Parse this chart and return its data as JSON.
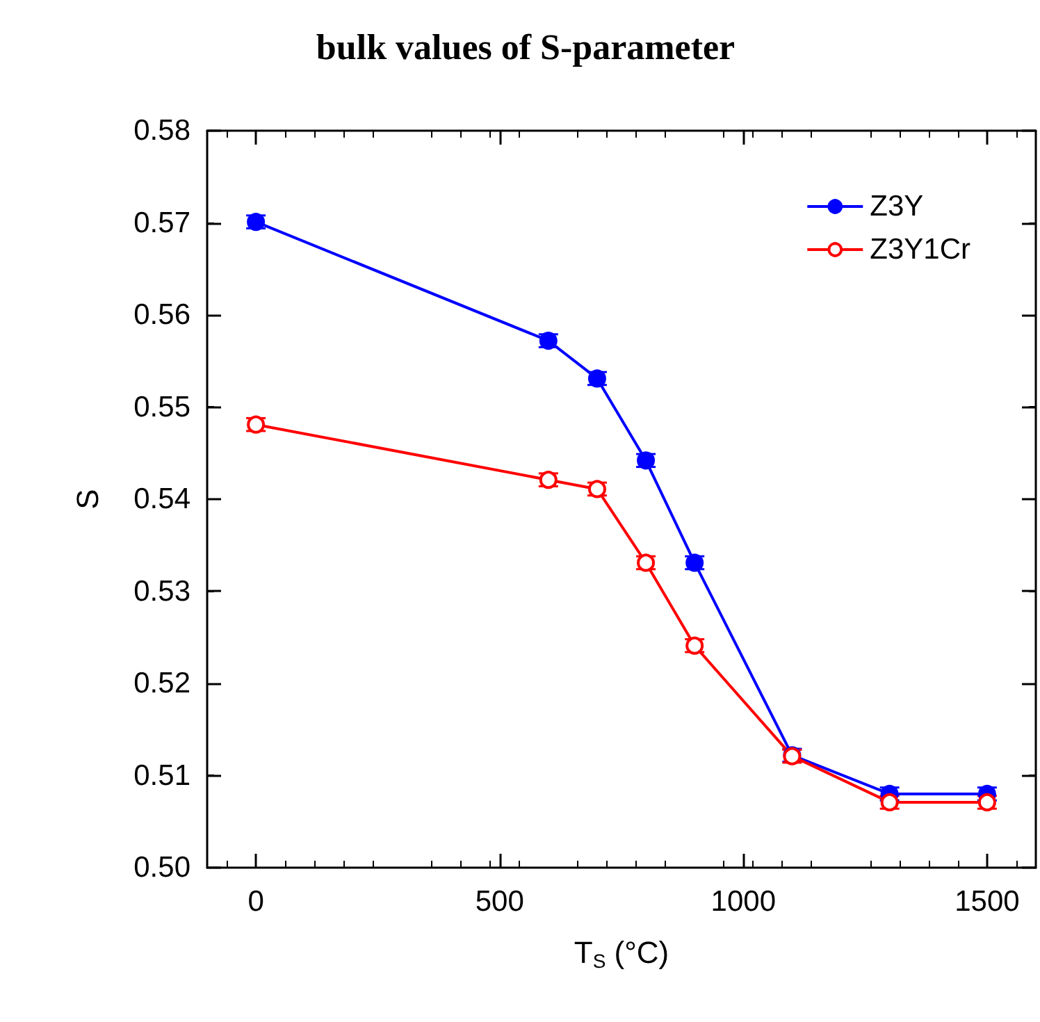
{
  "chart_data": {
    "type": "line",
    "title": "bulk values of S-parameter",
    "xlabel": "T$_{S}$ (°C)",
    "ylabel": "S",
    "x": [
      0,
      600,
      700,
      800,
      900,
      1100,
      1300,
      1500
    ],
    "series": [
      {
        "name": "Z3Y",
        "color": "#0000ff",
        "values": [
          0.5701,
          0.5572,
          0.5531,
          0.5442,
          0.5331,
          0.5122,
          0.508,
          0.508
        ],
        "errors": [
          0.0007,
          0.0007,
          0.0007,
          0.0007,
          0.0007,
          0.0007,
          0.0007,
          0.0007
        ]
      },
      {
        "name": "Z3Y1Cr",
        "color": "#ff0000",
        "values": [
          0.5481,
          0.5421,
          0.5411,
          0.5331,
          0.5241,
          0.5121,
          0.5071,
          0.5071
        ],
        "errors": [
          0.0007,
          0.0007,
          0.0007,
          0.0007,
          0.0007,
          0.0007,
          0.0007,
          0.0007
        ]
      }
    ],
    "xlim": [
      -100,
      1600
    ],
    "xticks": [
      0,
      500,
      1000,
      1500
    ],
    "ylim": [
      0.5,
      0.58
    ],
    "yticks": [
      {
        "value": 0.5,
        "label": "0.50"
      },
      0.51,
      0.52,
      0.53,
      0.54,
      0.55,
      0.56,
      0.57,
      0.58
    ],
    "grid": false,
    "legend": "top right",
    "marker": "circle",
    "line_style": "solid"
  }
}
